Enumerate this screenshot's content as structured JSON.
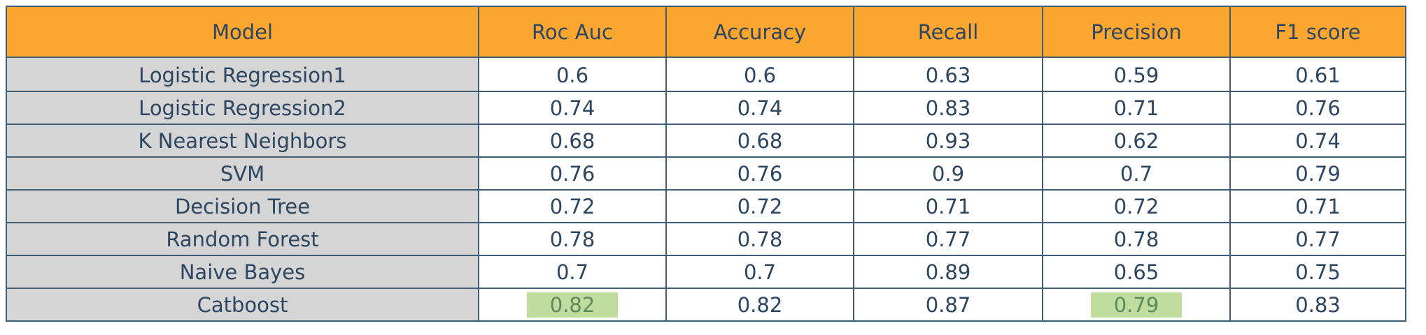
{
  "table": {
    "columns": [
      "Model",
      "Roc Auc",
      "Accuracy",
      "Recall",
      "Precision",
      "F1 score"
    ],
    "rows": [
      {
        "model": "Logistic Regression1",
        "roc_auc": "0.6",
        "accuracy": "0.6",
        "recall": "0.63",
        "precision": "0.59",
        "f1": "0.61"
      },
      {
        "model": "Logistic Regression2",
        "roc_auc": "0.74",
        "accuracy": "0.74",
        "recall": "0.83",
        "precision": "0.71",
        "f1": "0.76"
      },
      {
        "model": "K Nearest Neighbors",
        "roc_auc": "0.68",
        "accuracy": "0.68",
        "recall": "0.93",
        "precision": "0.62",
        "f1": "0.74"
      },
      {
        "model": "SVM",
        "roc_auc": "0.76",
        "accuracy": "0.76",
        "recall": "0.9",
        "precision": "0.7",
        "f1": "0.79"
      },
      {
        "model": "Decision Tree",
        "roc_auc": "0.72",
        "accuracy": "0.72",
        "recall": "0.71",
        "precision": "0.72",
        "f1": "0.71"
      },
      {
        "model": "Random Forest",
        "roc_auc": "0.78",
        "accuracy": "0.78",
        "recall": "0.77",
        "precision": "0.78",
        "f1": "0.77"
      },
      {
        "model": "Naive Bayes",
        "roc_auc": "0.7",
        "accuracy": "0.7",
        "recall": "0.89",
        "precision": "0.65",
        "f1": "0.75"
      },
      {
        "model": "Catboost",
        "roc_auc": "0.82",
        "accuracy": "0.82",
        "recall": "0.87",
        "precision": "0.79",
        "f1": "0.83"
      }
    ],
    "highlighted_cells": [
      {
        "row": 7,
        "column": "roc_auc"
      },
      {
        "row": 7,
        "column": "precision"
      }
    ]
  },
  "colors": {
    "header_bg": "#fba631",
    "text": "#2c4560",
    "border": "#3f5e75",
    "model_col_bg": "#d5d5d5",
    "highlight_bg": "#c0dc9f",
    "highlight_text": "#5c8a5c"
  }
}
